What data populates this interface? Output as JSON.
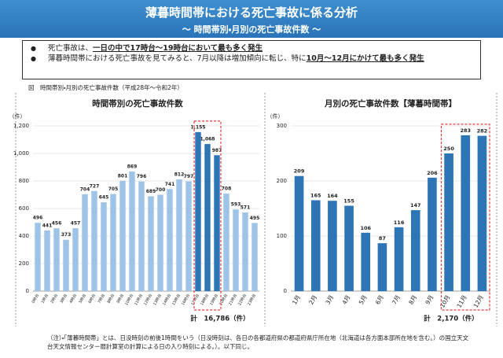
{
  "title": "薄暮時間帯における死亡事故に係る分析",
  "subtitle": "～ 時間帯別・月別の死亡事故件数 ～",
  "bullets": [
    [
      "死亡事故は、",
      "一日の中で17時台～19時台において最も多く発生"
    ],
    [
      "薄暮時間帯における死亡事故を見てみると、7月以降は増加傾向に転じ、特に",
      "10月～12月にかけて最も多く発生"
    ]
  ],
  "caption": "図　時間帯別・月別の死亡事故件数（平成28年～令和2年）",
  "note": "（注）・「薄暮時間帯」とは、日没時刻の前後1時間をいう（日没時刻は、各日の各都道府県の都道府県庁所在地（北海道は各方面本部所在地を含む。）の国立天文台天文情報センター暦計算室の計算による日の入り時刻による。）。以下同じ。",
  "chart_data": [
    {
      "type": "bar",
      "title": "時間帯別の死亡事故件数",
      "y_unit": "（件）",
      "categories": [
        "0時台",
        "1時台",
        "2時台",
        "3時台",
        "4時台",
        "5時台",
        "6時台",
        "7時台",
        "8時台",
        "9時台",
        "10時台",
        "11時台",
        "12時台",
        "13時台",
        "14時台",
        "15時台",
        "16時台",
        "17時台",
        "18時台",
        "19時台",
        "20時台",
        "21時台",
        "22時台",
        "23時台"
      ],
      "values": [
        496,
        441,
        456,
        373,
        457,
        704,
        727,
        645,
        705,
        801,
        869,
        796,
        689,
        700,
        741,
        812,
        797,
        1155,
        1068,
        987,
        708,
        593,
        571,
        495
      ],
      "value_labels": [
        "496",
        "441",
        "456",
        "373",
        "457",
        "704",
        "727",
        "645",
        "705",
        "801",
        "869",
        "796",
        "689",
        "700",
        "741",
        "812",
        "797",
        "1,155",
        "1,068",
        "987",
        "708",
        "593",
        "571",
        "495"
      ],
      "color": "#9dc3e6",
      "highlight": [
        17,
        18,
        19
      ],
      "highlight_color": "#2e75b6",
      "highlight_box_color": "#e8383d",
      "ylim": [
        0,
        1200
      ],
      "yticks": [
        0,
        200,
        400,
        600,
        800,
        {
          "value": 1000,
          "label": "1,000"
        },
        {
          "value": 1200,
          "label": "1,200"
        }
      ],
      "grid": true,
      "total": "計　16,786（件）"
    },
    {
      "type": "bar",
      "title": "月別の死亡事故件数【薄暮時間帯】",
      "y_unit": "（件）",
      "categories": [
        "1月",
        "2月",
        "3月",
        "4月",
        "5月",
        "6月",
        "7月",
        "8月",
        "9月",
        "10月",
        "11月",
        "12月"
      ],
      "values": [
        209,
        165,
        164,
        155,
        106,
        87,
        116,
        147,
        206,
        250,
        283,
        282
      ],
      "color": "#2e75b6",
      "highlight": [
        9,
        10,
        11
      ],
      "highlight_color": "#2e75b6",
      "highlight_box_color": "#e8383d",
      "ylim": [
        0,
        300
      ],
      "yticks": [
        0,
        100,
        200,
        300
      ],
      "grid": true,
      "total": "計　2,170（件）"
    }
  ]
}
